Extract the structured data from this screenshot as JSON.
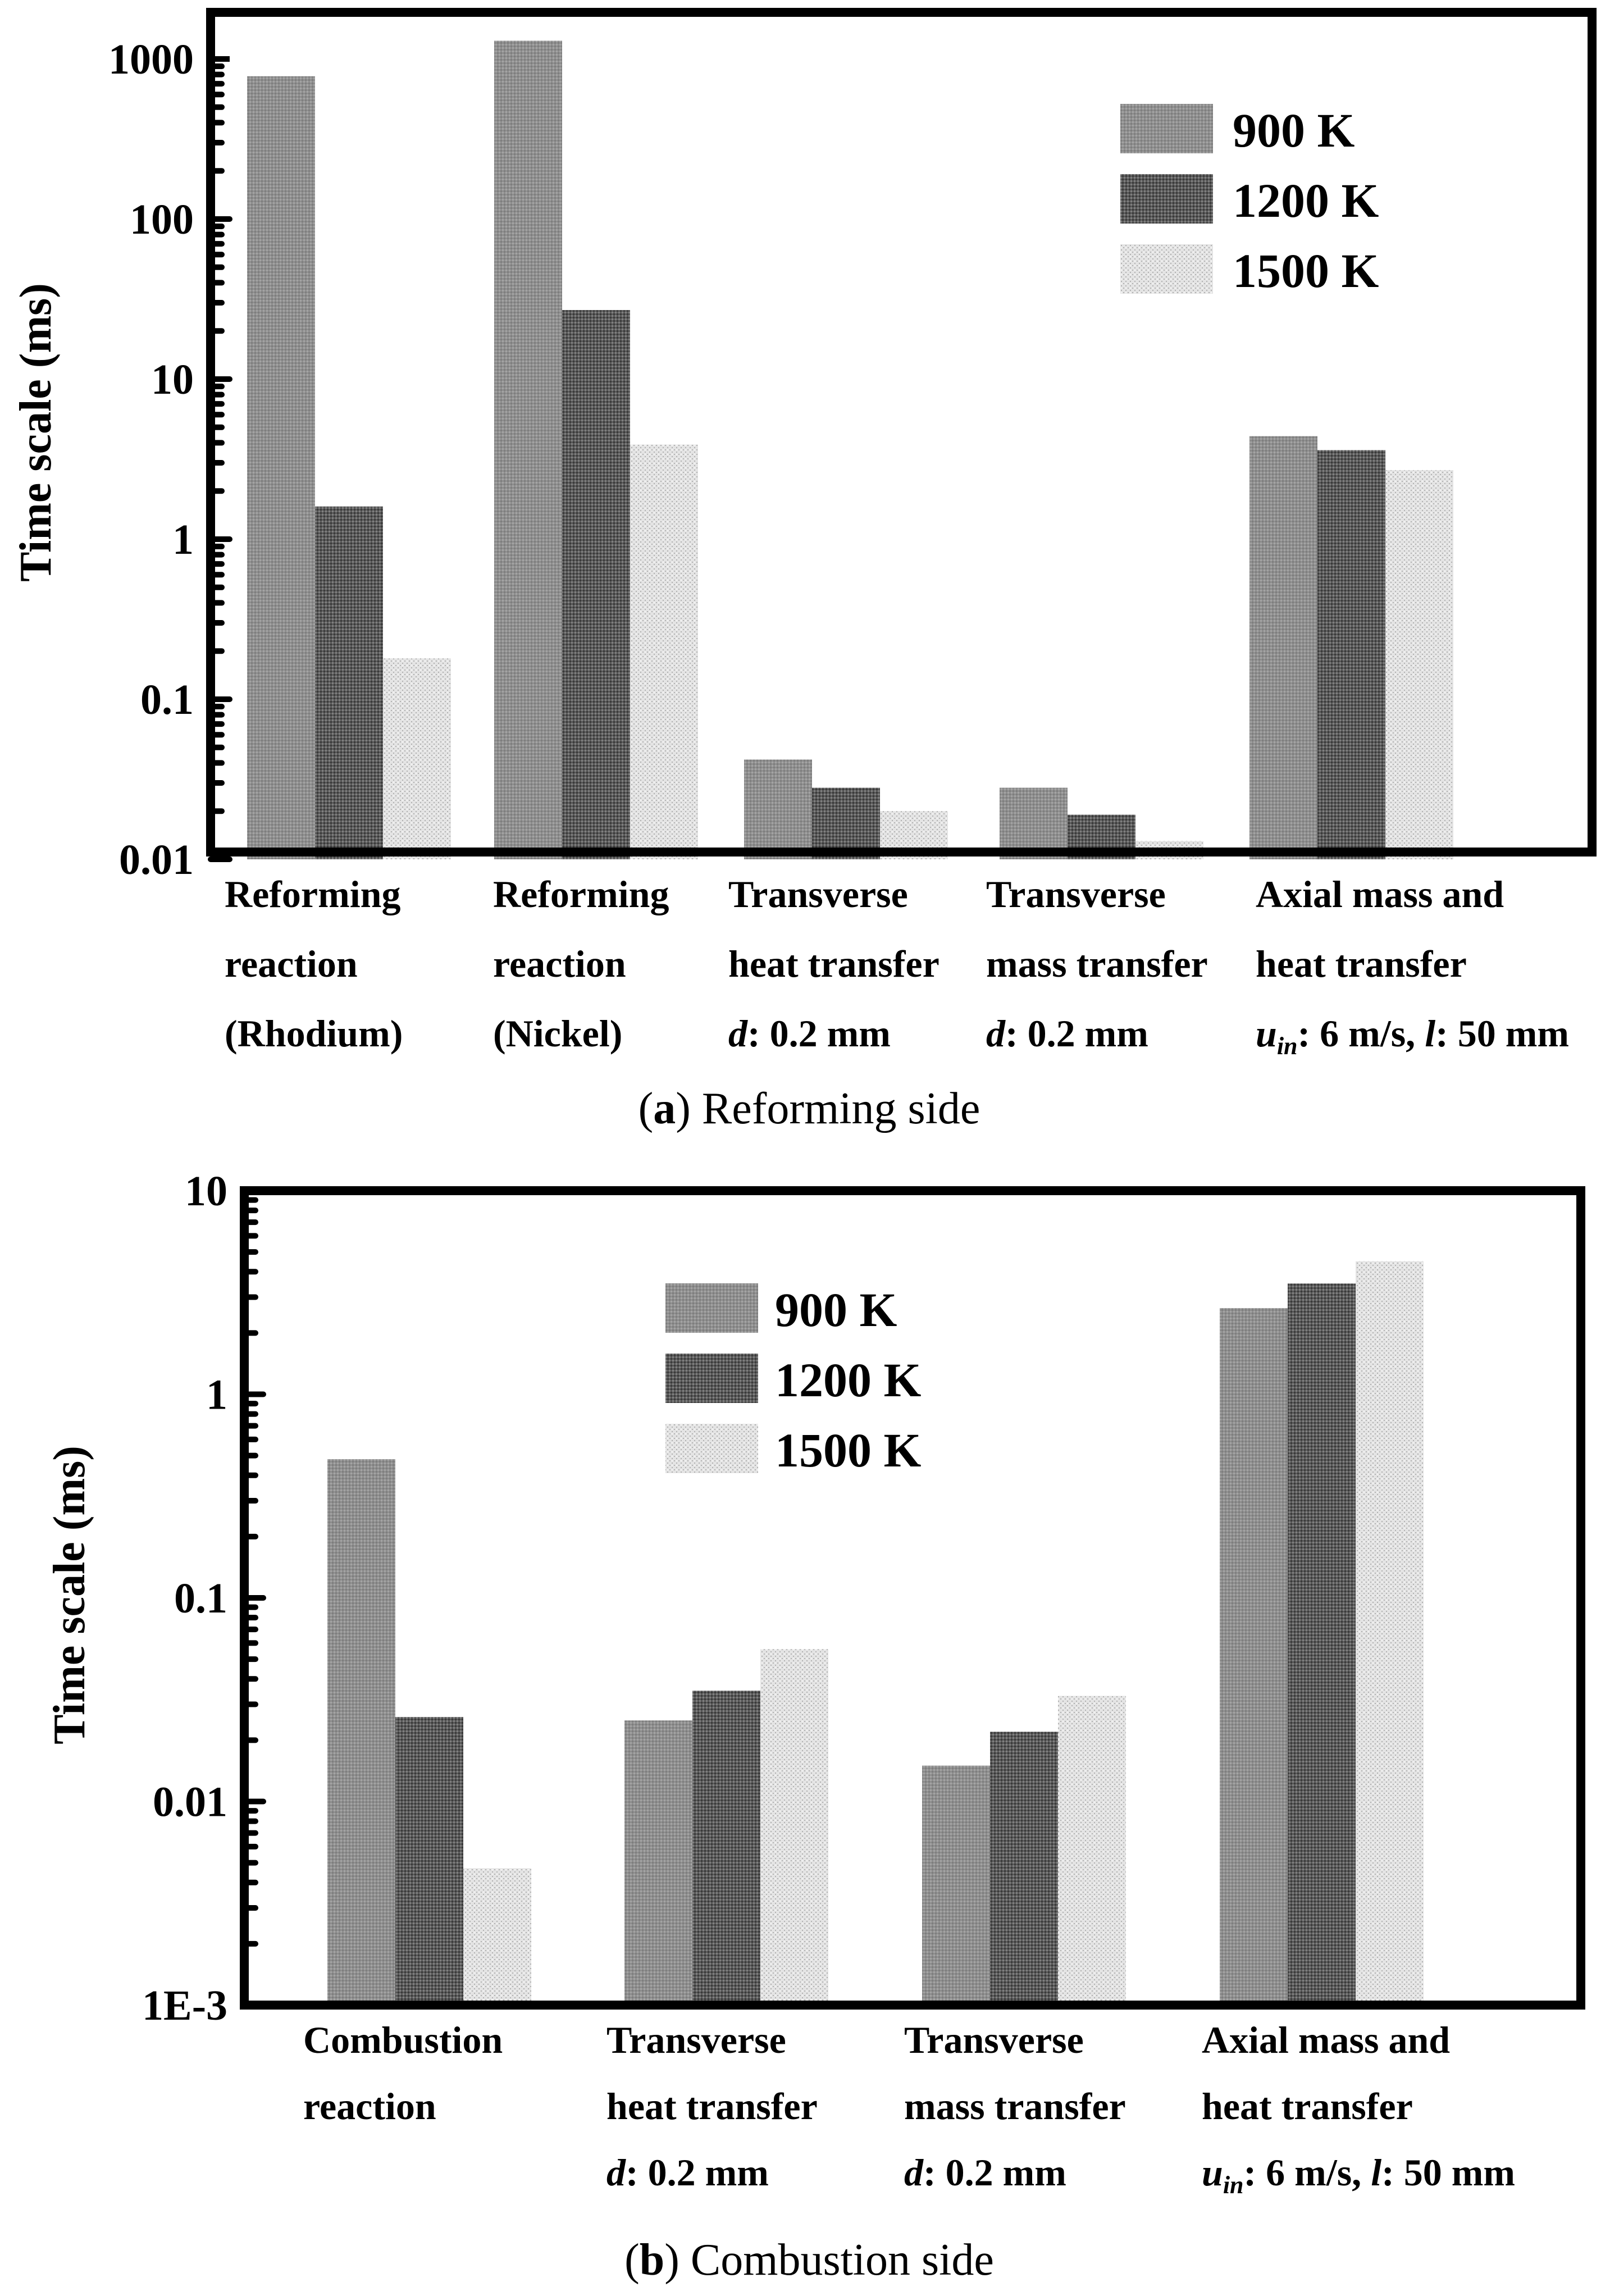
{
  "chart_data": [
    {
      "type": "bar",
      "yscale": "log",
      "ylim": [
        0.01,
        1500
      ],
      "ylabel": "Time scale (ms)",
      "yticks": [
        "0.01",
        "0.1",
        "1",
        "10",
        "100",
        "1000"
      ],
      "caption": {
        "letter": "a",
        "text": ") Reforming side",
        "open": "("
      },
      "legend": {
        "position": "top-right",
        "entries": [
          "900 K",
          "1200 K",
          "1500 K"
        ]
      },
      "categories": [
        {
          "lines": [
            "Reforming",
            "reaction",
            "(Rhodium)"
          ]
        },
        {
          "lines": [
            "Reforming",
            "reaction",
            "(Nickel)"
          ]
        },
        {
          "lines": [
            "Transverse",
            "heat transfer"
          ],
          "param": {
            "var": "d",
            "rest": ": 0.2 mm"
          }
        },
        {
          "lines": [
            "Transverse",
            "mass transfer"
          ],
          "param": {
            "var": "d",
            "rest": ": 0.2 mm"
          }
        },
        {
          "lines": [
            "Axial mass and",
            "heat transfer"
          ],
          "param2": {
            "u": "u",
            "sub": "in",
            "mid": ": 6 m/s, ",
            "l": "l",
            "rest": ": 50 mm"
          }
        }
      ],
      "series": [
        {
          "name": "900 K",
          "values": [
            780,
            1300,
            0.042,
            0.028,
            4.4
          ]
        },
        {
          "name": "1200 K",
          "values": [
            1.6,
            27,
            0.028,
            0.019,
            3.6
          ]
        },
        {
          "name": "1500 K",
          "values": [
            0.18,
            3.9,
            0.02,
            0.013,
            2.7
          ]
        }
      ]
    },
    {
      "type": "bar",
      "yscale": "log",
      "ylim": [
        0.001,
        10
      ],
      "ylabel": "Time scale (ms)",
      "yticks": [
        "1E-3",
        "0.01",
        "0.1",
        "1",
        "10"
      ],
      "caption": {
        "letter": "b",
        "text": ") Combustion side",
        "open": "("
      },
      "legend": {
        "position": "top-center",
        "entries": [
          "900 K",
          "1200 K",
          "1500 K"
        ]
      },
      "categories": [
        {
          "lines": [
            "Combustion",
            "reaction"
          ]
        },
        {
          "lines": [
            "Transverse",
            "heat transfer"
          ],
          "param": {
            "var": "d",
            "rest": ": 0.2 mm"
          }
        },
        {
          "lines": [
            "Transverse",
            "mass transfer"
          ],
          "param": {
            "var": "d",
            "rest": ": 0.2 mm"
          }
        },
        {
          "lines": [
            "Axial mass and",
            "heat transfer"
          ],
          "param2": {
            "u": "u",
            "sub": "in",
            "mid": ": 6 m/s, ",
            "l": "l",
            "rest": ": 50 mm"
          }
        }
      ],
      "series": [
        {
          "name": "900 K",
          "values": [
            0.48,
            0.025,
            0.015,
            2.65
          ]
        },
        {
          "name": "1200 K",
          "values": [
            0.026,
            0.035,
            0.022,
            3.5
          ]
        },
        {
          "name": "1500 K",
          "values": [
            0.0047,
            0.056,
            0.033,
            4.5
          ]
        }
      ]
    }
  ]
}
